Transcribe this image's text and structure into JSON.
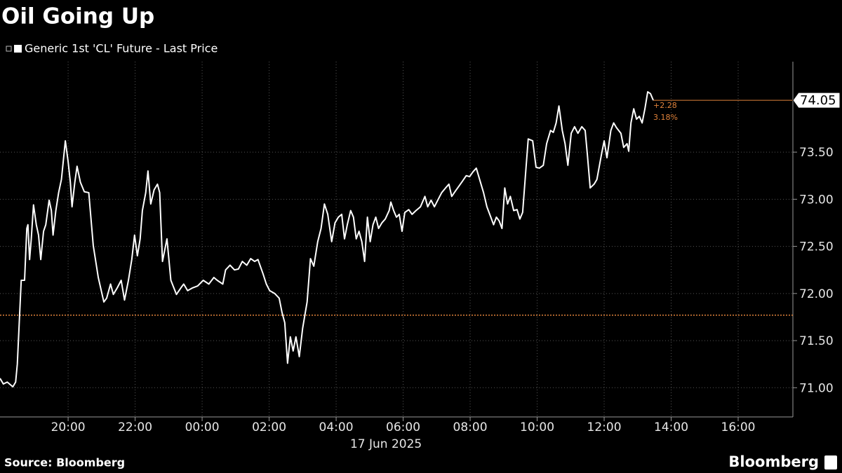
{
  "chart_data": {
    "type": "line",
    "title": "Oil Going Up",
    "source": "Source: Bloomberg",
    "brand": "Bloomberg",
    "date_label": "17 Jun 2025",
    "x": [
      "17:58",
      "18:04",
      "18:11",
      "18:21",
      "18:26",
      "18:29",
      "18:36",
      "18:42",
      "18:46",
      "18:48",
      "18:51",
      "18:54",
      "18:58",
      "19:03",
      "19:07",
      "19:11",
      "19:16",
      "19:20",
      "19:26",
      "19:30",
      "19:33",
      "19:38",
      "19:43",
      "19:48",
      "19:55",
      "20:00",
      "20:04",
      "20:07",
      "20:12",
      "20:16",
      "20:22",
      "20:29",
      "20:37",
      "20:45",
      "20:54",
      "21:04",
      "21:09",
      "21:16",
      "21:21",
      "21:28",
      "21:35",
      "21:41",
      "21:48",
      "21:54",
      "21:59",
      "22:04",
      "22:09",
      "22:13",
      "22:19",
      "22:23",
      "22:28",
      "22:34",
      "22:40",
      "22:44",
      "22:49",
      "22:57",
      "23:04",
      "23:14",
      "23:22",
      "23:27",
      "23:34",
      "23:43",
      "23:52",
      "00:02",
      "00:12",
      "00:21",
      "00:27",
      "00:37",
      "00:42",
      "00:50",
      "00:58",
      "01:05",
      "01:12",
      "01:20",
      "01:27",
      "01:34",
      "01:40",
      "01:49",
      "01:55",
      "02:01",
      "02:10",
      "02:18",
      "02:23",
      "02:28",
      "02:33",
      "02:38",
      "02:43",
      "02:48",
      "02:54",
      "03:00",
      "03:08",
      "03:14",
      "03:20",
      "03:27",
      "03:33",
      "03:39",
      "03:45",
      "03:52",
      "03:58",
      "04:04",
      "04:10",
      "04:15",
      "04:20",
      "04:26",
      "04:31",
      "04:36",
      "04:41",
      "04:46",
      "04:51",
      "04:56",
      "05:01",
      "05:06",
      "05:11",
      "05:16",
      "05:22",
      "05:28",
      "05:35",
      "05:38",
      "05:43",
      "05:48",
      "05:53",
      "05:58",
      "06:03",
      "06:10",
      "06:16",
      "06:23",
      "06:31",
      "06:39",
      "06:44",
      "06:50",
      "06:56",
      "07:02",
      "07:09",
      "07:16",
      "07:22",
      "07:27",
      "07:34",
      "07:40",
      "07:46",
      "07:53",
      "07:59",
      "08:05",
      "08:11",
      "08:18",
      "08:24",
      "08:30",
      "08:37",
      "08:42",
      "08:47",
      "08:52",
      "08:57",
      "09:02",
      "09:07",
      "09:12",
      "09:18",
      "09:24",
      "09:29",
      "09:34",
      "09:39",
      "09:44",
      "09:52",
      "09:58",
      "10:04",
      "10:11",
      "10:17",
      "10:24",
      "10:29",
      "10:34",
      "10:39",
      "10:45",
      "10:50",
      "10:55",
      "11:01",
      "11:07",
      "11:13",
      "11:20",
      "11:26",
      "11:30",
      "11:35",
      "11:42",
      "11:47",
      "11:55",
      "12:00",
      "12:05",
      "12:12",
      "12:17",
      "12:22",
      "12:30",
      "12:35",
      "12:41",
      "12:44",
      "12:48",
      "12:53",
      "12:58",
      "13:03",
      "13:08",
      "13:13",
      "13:18",
      "13:23",
      "13:28"
    ],
    "series": [
      {
        "name": "Generic 1st 'CL' Future - Last Price",
        "color": "#ffffff",
        "values": [
          71.1,
          71.04,
          71.06,
          71.01,
          71.06,
          71.25,
          72.14,
          72.14,
          72.69,
          72.73,
          72.36,
          72.58,
          72.94,
          72.73,
          72.62,
          72.36,
          72.66,
          72.73,
          72.99,
          72.88,
          72.62,
          72.88,
          73.07,
          73.21,
          73.62,
          73.4,
          73.18,
          72.92,
          73.18,
          73.35,
          73.18,
          73.08,
          73.07,
          72.51,
          72.17,
          71.91,
          71.95,
          72.1,
          71.99,
          72.06,
          72.14,
          71.93,
          72.14,
          72.36,
          72.62,
          72.4,
          72.58,
          72.88,
          73.07,
          73.3,
          72.95,
          73.1,
          73.16,
          73.07,
          72.34,
          72.58,
          72.14,
          71.99,
          72.06,
          72.1,
          72.03,
          72.06,
          72.08,
          72.14,
          72.1,
          72.17,
          72.14,
          72.1,
          72.25,
          72.3,
          72.25,
          72.26,
          72.34,
          72.3,
          72.37,
          72.34,
          72.36,
          72.21,
          72.1,
          72.03,
          72.0,
          71.95,
          71.8,
          71.69,
          71.26,
          71.54,
          71.39,
          71.54,
          71.33,
          71.63,
          71.91,
          72.37,
          72.29,
          72.55,
          72.69,
          72.95,
          72.84,
          72.55,
          72.75,
          72.81,
          72.84,
          72.58,
          72.73,
          72.88,
          72.81,
          72.58,
          72.66,
          72.55,
          72.34,
          72.81,
          72.55,
          72.73,
          72.81,
          72.69,
          72.75,
          72.79,
          72.88,
          72.97,
          72.88,
          72.81,
          72.84,
          72.66,
          72.86,
          72.89,
          72.84,
          72.88,
          72.92,
          73.03,
          72.92,
          72.99,
          72.92,
          72.99,
          73.07,
          73.12,
          73.16,
          73.03,
          73.09,
          73.14,
          73.19,
          73.25,
          73.24,
          73.29,
          73.33,
          73.19,
          73.07,
          72.92,
          72.81,
          72.73,
          72.81,
          72.77,
          72.69,
          73.12,
          72.95,
          73.03,
          72.88,
          72.89,
          72.79,
          72.86,
          73.25,
          73.64,
          73.62,
          73.34,
          73.33,
          73.36,
          73.59,
          73.73,
          73.71,
          73.81,
          73.99,
          73.73,
          73.59,
          73.36,
          73.7,
          73.77,
          73.7,
          73.77,
          73.73,
          73.47,
          73.12,
          73.16,
          73.21,
          73.47,
          73.62,
          73.44,
          73.73,
          73.81,
          73.76,
          73.7,
          73.55,
          73.59,
          73.51,
          73.81,
          73.96,
          73.85,
          73.88,
          73.81,
          73.96,
          74.14,
          74.12,
          74.05
        ]
      }
    ],
    "xlim": [
      "17:58",
      "17:38"
    ],
    "xticks": [
      "20:00",
      "22:00",
      "00:00",
      "02:00",
      "04:00",
      "06:00",
      "08:00",
      "10:00",
      "12:00",
      "14:00",
      "16:00"
    ],
    "ylim": [
      70.69,
      74.46
    ],
    "yticks": [
      {
        "value": 71,
        "label": "71.00"
      },
      {
        "value": 71.5,
        "label": "71.50"
      },
      {
        "value": 72,
        "label": "72.00"
      },
      {
        "value": 72.5,
        "label": "72.50"
      },
      {
        "value": 73,
        "label": "73.00"
      },
      {
        "value": 73.5,
        "label": "73.50"
      }
    ],
    "grid": true,
    "reference_line": 71.77,
    "reference_color": "#e0823a",
    "last_value": {
      "value": 74.05,
      "label": "74.05"
    },
    "change_label": "+2.28",
    "change_pct_label": "3.18%"
  }
}
